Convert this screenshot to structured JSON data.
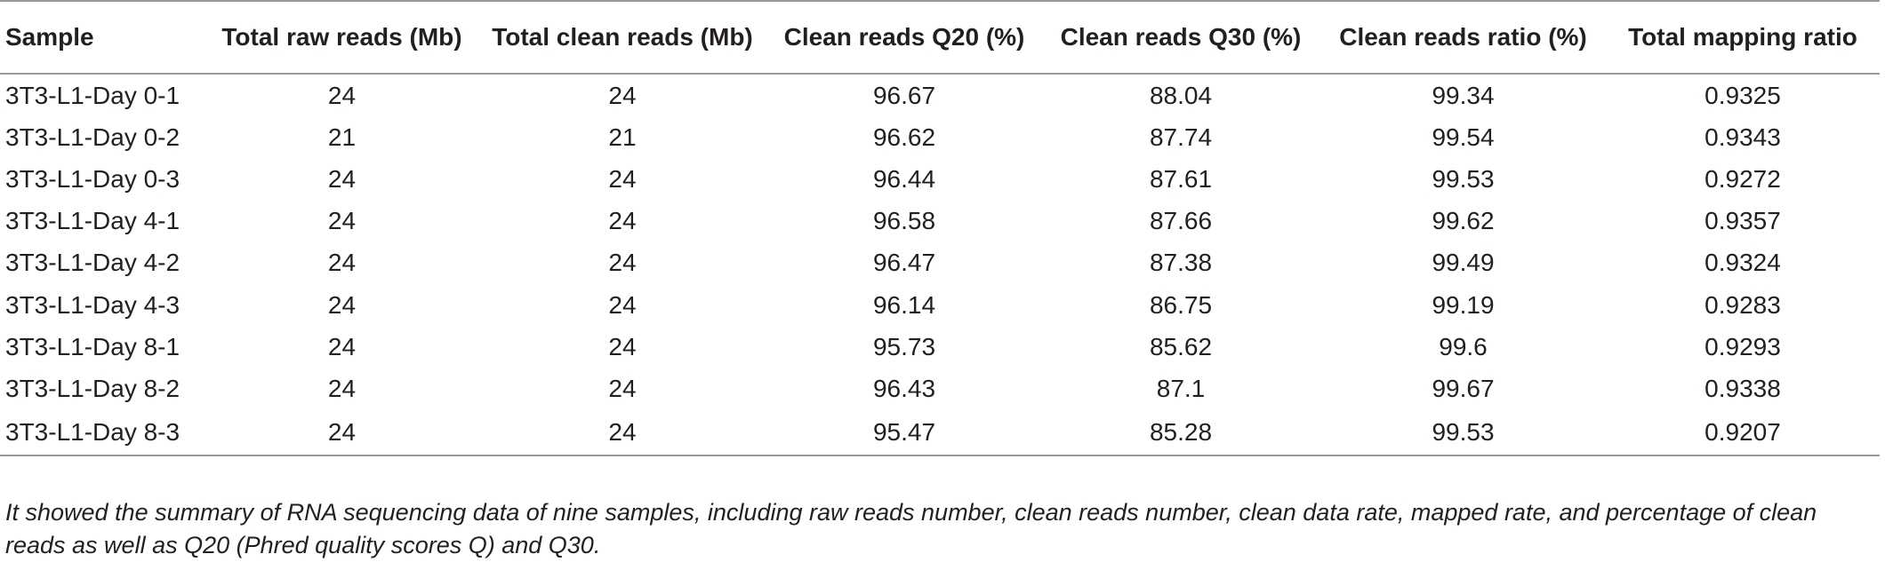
{
  "table": {
    "headers": [
      "Sample",
      "Total raw reads (Mb)",
      "Total clean reads (Mb)",
      "Clean reads Q20 (%)",
      "Clean reads Q30 (%)",
      "Clean reads ratio (%)",
      "Total mapping ratio"
    ],
    "rows": [
      [
        "3T3-L1-Day 0-1",
        "24",
        "24",
        "96.67",
        "88.04",
        "99.34",
        "0.9325"
      ],
      [
        "3T3-L1-Day 0-2",
        "21",
        "21",
        "96.62",
        "87.74",
        "99.54",
        "0.9343"
      ],
      [
        "3T3-L1-Day 0-3",
        "24",
        "24",
        "96.44",
        "87.61",
        "99.53",
        "0.9272"
      ],
      [
        "3T3-L1-Day 4-1",
        "24",
        "24",
        "96.58",
        "87.66",
        "99.62",
        "0.9357"
      ],
      [
        "3T3-L1-Day 4-2",
        "24",
        "24",
        "96.47",
        "87.38",
        "99.49",
        "0.9324"
      ],
      [
        "3T3-L1-Day 4-3",
        "24",
        "24",
        "96.14",
        "86.75",
        "99.19",
        "0.9283"
      ],
      [
        "3T3-L1-Day 8-1",
        "24",
        "24",
        "95.73",
        "85.62",
        "99.6",
        "0.9293"
      ],
      [
        "3T3-L1-Day 8-2",
        "24",
        "24",
        "96.43",
        "87.1",
        "99.67",
        "0.9338"
      ],
      [
        "3T3-L1-Day 8-3",
        "24",
        "24",
        "95.47",
        "85.28",
        "99.53",
        "0.9207"
      ]
    ]
  },
  "caption": "It showed the summary of RNA sequencing data of nine samples, including raw reads number, clean reads number, clean data rate, mapped rate, and percentage of clean reads as well as Q20 (Phred quality scores Q) and Q30.",
  "colors": {
    "text": "#231f20",
    "rule": "#9a9a9a"
  }
}
